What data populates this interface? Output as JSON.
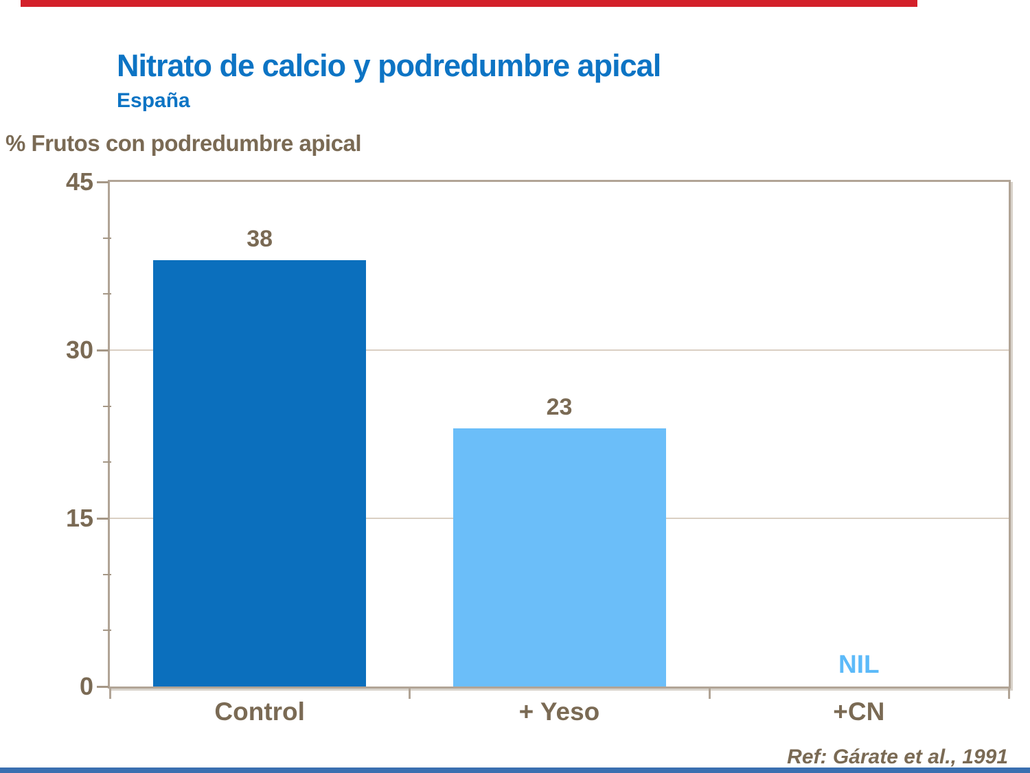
{
  "slide": {
    "title": "Nitrato de calcio y podredumbre apical",
    "subtitle": "España",
    "axis_title": "% Frutos con podredumbre apical",
    "reference": "Ref: Gárate et al., 1991"
  },
  "colors": {
    "title_blue": "#0d74c4",
    "text_brown": "#7a6a54",
    "bar_dark_blue": "#0b6fbd",
    "bar_light_blue": "#6bbef9",
    "nil_blue": "#5cbaf9",
    "frame_line": "#b1a496",
    "tick_line": "#a59786",
    "gridline": "#dacfc3",
    "top_accent_red": "#d3202a",
    "bottom_accent_blue": "#3a6fb0"
  },
  "chart_data": {
    "type": "bar",
    "title": "Nitrato de calcio y podredumbre apical",
    "subtitle": "España",
    "ylabel": "% Frutos con podredumbre apical",
    "categories": [
      "Control",
      "+ Yeso",
      "+CN"
    ],
    "values": [
      38,
      23,
      0
    ],
    "value_labels": [
      "38",
      "23",
      "NIL"
    ],
    "bar_colors": [
      "#0b6fbd",
      "#6bbef9",
      null
    ],
    "ylim": [
      0,
      45
    ],
    "yticks": [
      0,
      15,
      30,
      45
    ],
    "minor_yticks": [
      5,
      10,
      20,
      25,
      35,
      40
    ],
    "grid": "horizontal-major",
    "legend": "none",
    "annotation": "Ref: Gárate et al., 1991"
  }
}
